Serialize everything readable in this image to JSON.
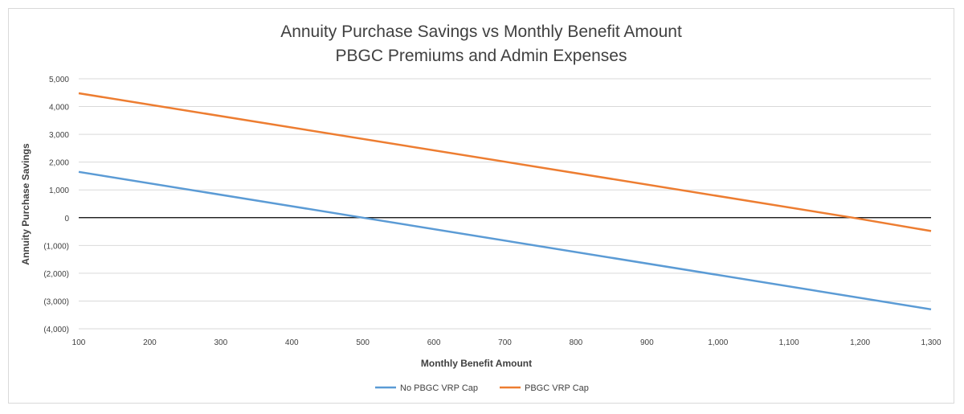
{
  "chart_data": {
    "type": "line",
    "title": "Annuity Purchase Savings vs Monthly Benefit Amount",
    "subtitle": "PBGC Premiums and Admin Expenses",
    "xlabel": "Monthly Benefit Amount",
    "ylabel": "Annuity Purchase Savings",
    "xlim": [
      100,
      1300
    ],
    "ylim": [
      -4000,
      5000
    ],
    "x_ticks": [
      100,
      200,
      300,
      400,
      500,
      600,
      700,
      800,
      900,
      1000,
      1100,
      1200,
      1300
    ],
    "x_tick_labels": [
      "100",
      "200",
      "300",
      "400",
      "500",
      "600",
      "700",
      "800",
      "900",
      "1,000",
      "1,100",
      "1,200",
      "1,300"
    ],
    "y_ticks": [
      5000,
      4000,
      3000,
      2000,
      1000,
      0,
      -1000,
      -2000,
      -3000,
      -4000
    ],
    "y_tick_labels": [
      "5,000",
      "4,000",
      "3,000",
      "2,000",
      "1,000",
      "0",
      "(1,000)",
      "(2,000)",
      "(3,000)",
      "(4,000)"
    ],
    "grid": true,
    "legend_position": "bottom",
    "series": [
      {
        "name": "No PBGC VRP Cap",
        "color": "#5b9bd5",
        "x": [
          100,
          500,
          1300
        ],
        "values": [
          1650,
          0,
          -3300
        ]
      },
      {
        "name": "PBGC VRP Cap",
        "color": "#ed7d31",
        "x": [
          100,
          1190,
          1300
        ],
        "values": [
          4480,
          0,
          -480
        ]
      }
    ]
  }
}
